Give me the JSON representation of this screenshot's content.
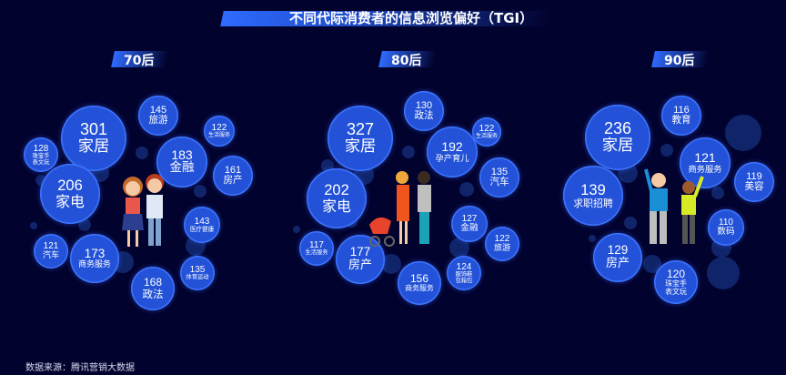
{
  "title": "不同代际消费者的信息浏览偏好（TGI）",
  "source": "数据来源：腾讯营销大数据",
  "colors": {
    "background": "#02022e",
    "bubble": "#2352d8",
    "accent": "#2f6bff"
  },
  "chart_data": {
    "type": "bubble",
    "title": "不同代际消费者的信息浏览偏好（TGI）",
    "groups": [
      {
        "name": "70后",
        "items": [
          {
            "label": "家居",
            "value": 301
          },
          {
            "label": "家电",
            "value": 206
          },
          {
            "label": "旅游",
            "value": 145
          },
          {
            "label": "生活服务",
            "value": 122
          },
          {
            "label": "珠宝手表文玩",
            "value": 128
          },
          {
            "label": "金融",
            "value": 183
          },
          {
            "label": "房产",
            "value": 161
          },
          {
            "label": "医疗健康",
            "value": 143
          },
          {
            "label": "汽车",
            "value": 121
          },
          {
            "label": "商务服务",
            "value": 173
          },
          {
            "label": "政法",
            "value": 168
          },
          {
            "label": "体育运动",
            "value": 135
          }
        ]
      },
      {
        "name": "80后",
        "items": [
          {
            "label": "家居",
            "value": 327
          },
          {
            "label": "家电",
            "value": 202
          },
          {
            "label": "政法",
            "value": 130
          },
          {
            "label": "生活服务",
            "value": 122
          },
          {
            "label": "孕产育儿",
            "value": 192
          },
          {
            "label": "汽车",
            "value": 135
          },
          {
            "label": "金融",
            "value": 127
          },
          {
            "label": "旅游",
            "value": 122
          },
          {
            "label": "生活服务",
            "value": 117
          },
          {
            "label": "房产",
            "value": 177
          },
          {
            "label": "商务服务",
            "value": 156
          },
          {
            "label": "服饰鞋包箱包",
            "value": 124
          }
        ]
      },
      {
        "name": "90后",
        "items": [
          {
            "label": "家居",
            "value": 236
          },
          {
            "label": "求职招聘",
            "value": 139
          },
          {
            "label": "教育",
            "value": 116
          },
          {
            "label": "商务服务",
            "value": 121
          },
          {
            "label": "美容",
            "value": 119
          },
          {
            "label": "数码",
            "value": 110
          },
          {
            "label": "房产",
            "value": 129
          },
          {
            "label": "珠宝手表文玩",
            "value": 120
          }
        ]
      }
    ]
  }
}
